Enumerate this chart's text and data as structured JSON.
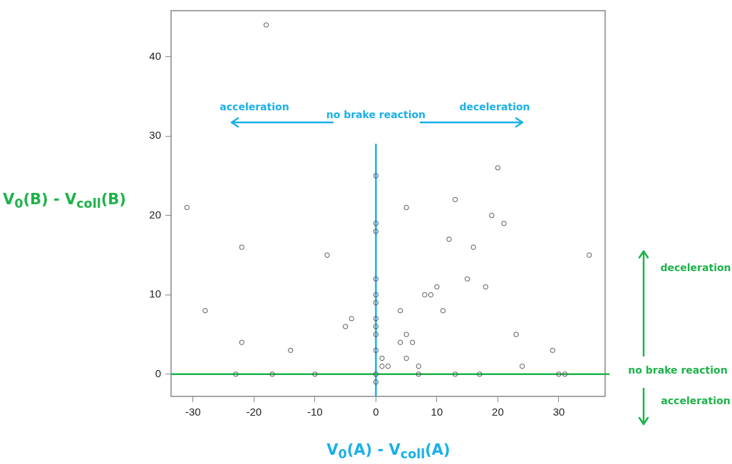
{
  "chart_data": {
    "type": "scatter",
    "xlabel": "V$_{0}$(A) - V$_{coll}$(A)",
    "ylabel": "V$_{0}$(B) - V$_{coll}$(B)",
    "x": [
      -18,
      -31,
      0,
      20,
      13,
      5,
      19,
      21,
      0,
      0,
      12,
      16,
      35,
      15,
      0,
      10,
      18,
      8,
      9,
      0,
      0,
      -22,
      -8,
      -28,
      0,
      -4,
      -5,
      0,
      0,
      -22,
      -14,
      0,
      1,
      1,
      -23,
      -17,
      -10,
      0,
      0,
      4,
      11,
      5,
      23,
      4,
      6,
      29,
      5,
      2,
      7,
      24,
      7,
      13,
      17,
      30,
      31
    ],
    "series": [
      {
        "color": "#555555",
        "values": [
          44,
          21,
          25,
          26,
          22,
          21,
          20,
          19,
          19,
          18,
          17,
          16,
          15,
          12,
          12,
          11,
          11,
          10,
          10,
          10,
          9,
          16,
          15,
          8,
          7,
          7,
          6,
          6,
          5,
          4,
          3,
          3,
          2,
          1,
          0,
          0,
          0,
          0,
          -1,
          8,
          8,
          5,
          5,
          4,
          4,
          3,
          2,
          1,
          1,
          1,
          0,
          0,
          0,
          0,
          0
        ]
      }
    ],
    "xlim": [
      -33.6,
      37.6
    ],
    "ylim": [
      -2.8,
      45.8
    ],
    "xticks": [
      -30,
      -20,
      -10,
      0,
      10,
      20,
      30
    ],
    "yticks": [
      0,
      10,
      20,
      30,
      40
    ],
    "grid": false,
    "legend": false,
    "marker": "circle",
    "ref_lines": [
      {
        "axis": "x",
        "value": 0,
        "label": "no brake reaction",
        "color": "#1ab0e8"
      },
      {
        "axis": "y",
        "value": 0,
        "label": "no brake reaction",
        "color": "#1db34a"
      }
    ],
    "annotations": [
      "acceleration",
      "deceleration",
      "deceleration",
      "acceleration"
    ]
  }
}
